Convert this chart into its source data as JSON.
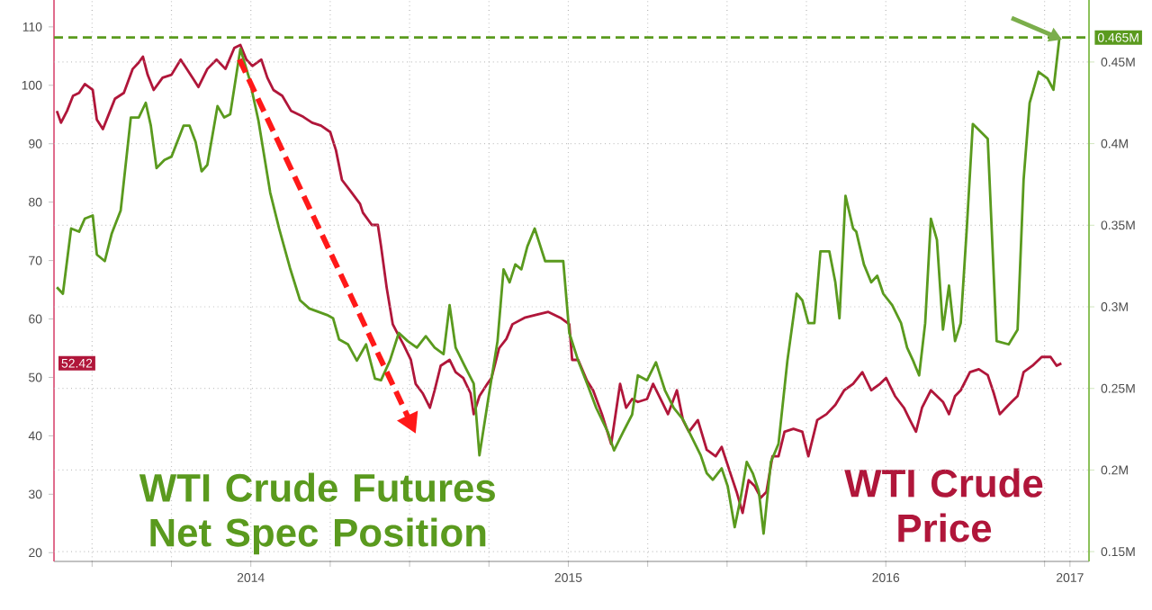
{
  "chart_data": {
    "type": "line",
    "xlim": [
      2013.88,
      2017.14
    ],
    "xticks": [
      {
        "value": 2014,
        "label": null
      },
      {
        "value": 2014.25,
        "label": null
      },
      {
        "value": 2014.5,
        "label": "2014"
      },
      {
        "value": 2014.75,
        "label": null
      },
      {
        "value": 2015,
        "label": null
      },
      {
        "value": 2015.25,
        "label": null
      },
      {
        "value": 2015.5,
        "label": "2015"
      },
      {
        "value": 2015.75,
        "label": null
      },
      {
        "value": 2016,
        "label": null
      },
      {
        "value": 2016.25,
        "label": null
      },
      {
        "value": 2016.5,
        "label": "2016"
      },
      {
        "value": 2016.75,
        "label": null
      },
      {
        "value": 2017,
        "label": null
      },
      {
        "value": 2017.08,
        "label": "2017"
      }
    ],
    "ylim": [
      18.5,
      114.6
    ],
    "yticks": [
      20,
      30,
      40,
      50,
      60,
      70,
      80,
      90,
      100,
      110
    ],
    "y2lim": [
      0.144,
      0.488
    ],
    "y2ticks": [
      {
        "value": 0.15,
        "label": "0.15M"
      },
      {
        "value": 0.2,
        "label": "0.2M"
      },
      {
        "value": 0.25,
        "label": "0.25M"
      },
      {
        "value": 0.3,
        "label": "0.3M"
      },
      {
        "value": 0.35,
        "label": "0.35M"
      },
      {
        "value": 0.4,
        "label": "0.4M"
      },
      {
        "value": 0.45,
        "label": "0.45M"
      }
    ],
    "grid": true,
    "ref_lines": [
      {
        "axis": "y2",
        "value": 0.465,
        "label": "0.465M",
        "color": "#5a9a1e",
        "line_style": "dashed"
      }
    ],
    "annotations": [
      "52.42"
    ],
    "series": [
      {
        "name": "WTI Crude Price",
        "color": "#b0163a",
        "axis": "y",
        "x": [
          2013.889,
          2013.902,
          2013.921,
          2013.94,
          2013.959,
          2013.977,
          2014.002,
          2014.015,
          2014.034,
          2014.053,
          2014.072,
          2014.1,
          2014.128,
          2014.147,
          2014.16,
          2014.175,
          2014.194,
          2014.222,
          2014.25,
          2014.279,
          2014.298,
          2014.316,
          2014.335,
          2014.363,
          2014.392,
          2014.42,
          2014.448,
          2014.467,
          2014.486,
          2014.505,
          2014.533,
          2014.552,
          2014.571,
          2014.599,
          2014.627,
          2014.665,
          2014.693,
          2014.721,
          2014.75,
          2014.768,
          2014.787,
          2014.815,
          2014.844,
          2014.853,
          2014.881,
          2014.9,
          2014.91,
          2014.928,
          2014.947,
          2014.966,
          2014.981,
          2015.004,
          2015.019,
          2015.041,
          2015.064,
          2015.079,
          2015.098,
          2015.126,
          2015.145,
          2015.169,
          2015.192,
          2015.202,
          2015.22,
          2015.245,
          2015.258,
          2015.282,
          2015.305,
          2015.324,
          2015.362,
          2015.399,
          2015.437,
          2015.475,
          2015.503,
          2015.512,
          2015.531,
          2015.559,
          2015.578,
          2015.606,
          2015.635,
          2015.663,
          2015.682,
          2015.701,
          2015.719,
          2015.748,
          2015.767,
          2015.795,
          2015.814,
          2015.842,
          2015.861,
          2015.88,
          2015.908,
          2015.936,
          2015.964,
          2015.983,
          2016.011,
          2016.03,
          2016.049,
          2016.068,
          2016.087,
          2016.106,
          2016.124,
          2016.143,
          2016.162,
          2016.181,
          2016.209,
          2016.237,
          2016.256,
          2016.284,
          2016.313,
          2016.341,
          2016.369,
          2016.397,
          2016.426,
          2016.454,
          2016.482,
          2016.501,
          2016.529,
          2016.557,
          2016.576,
          2016.595,
          2016.614,
          2016.642,
          2016.661,
          2016.68,
          2016.699,
          2016.718,
          2016.736,
          2016.765,
          2016.793,
          2016.821,
          2016.84,
          2016.859,
          2016.878,
          2016.896,
          2016.915,
          2016.934,
          2016.962,
          2016.991,
          2017.019,
          2017.038,
          2017.053
        ],
        "values": [
          95.6,
          93.6,
          95.6,
          98.2,
          98.7,
          100.2,
          99.2,
          94.1,
          92.5,
          95.1,
          97.7,
          98.7,
          102.8,
          103.9,
          104.9,
          101.8,
          99.2,
          101.3,
          101.8,
          104.4,
          102.8,
          101.3,
          99.7,
          102.8,
          104.4,
          102.8,
          106.4,
          106.9,
          104.4,
          103.3,
          104.4,
          101.3,
          99.2,
          98.2,
          95.6,
          94.6,
          93.6,
          93.1,
          92.0,
          88.9,
          83.8,
          81.8,
          79.7,
          78.2,
          76.1,
          76.1,
          72.5,
          65.3,
          59.1,
          57.1,
          55.6,
          53.0,
          48.9,
          47.3,
          44.8,
          47.8,
          52.0,
          53.0,
          50.9,
          49.9,
          47.3,
          43.7,
          46.8,
          48.9,
          49.9,
          55.0,
          56.6,
          59.1,
          60.2,
          60.7,
          61.2,
          60.2,
          59.1,
          53.0,
          53.0,
          49.4,
          47.8,
          43.7,
          38.6,
          48.9,
          44.8,
          46.3,
          45.8,
          46.3,
          48.9,
          45.8,
          43.7,
          47.8,
          42.7,
          40.7,
          42.7,
          37.6,
          36.5,
          38.1,
          33.5,
          30.4,
          26.8,
          32.4,
          31.4,
          29.4,
          30.4,
          36.5,
          36.5,
          40.7,
          41.2,
          40.7,
          36.5,
          42.7,
          43.7,
          45.3,
          47.8,
          48.9,
          50.9,
          47.8,
          48.9,
          49.9,
          46.8,
          44.8,
          42.7,
          40.7,
          44.8,
          47.8,
          46.8,
          45.8,
          43.7,
          46.8,
          47.8,
          50.9,
          51.4,
          50.4,
          47.3,
          43.7,
          44.8,
          45.8,
          46.8,
          50.9,
          52.0,
          53.5,
          53.5,
          52.0,
          52.4
        ]
      },
      {
        "name": "WTI Crude Futures Net Spec Position",
        "color": "#5a9a1e",
        "axis": "y2",
        "x": [
          2013.889,
          2013.908,
          2013.934,
          2013.959,
          2013.977,
          2014.002,
          2014.015,
          2014.04,
          2014.062,
          2014.09,
          2014.122,
          2014.147,
          2014.169,
          2014.185,
          2014.203,
          2014.228,
          2014.25,
          2014.288,
          2014.307,
          2014.326,
          2014.345,
          2014.363,
          2014.395,
          2014.416,
          2014.435,
          2014.467,
          2014.495,
          2014.524,
          2014.561,
          2014.589,
          2014.623,
          2014.655,
          2014.684,
          2014.74,
          2014.759,
          2014.778,
          2014.806,
          2014.834,
          2014.863,
          2014.891,
          2014.91,
          2014.938,
          2014.966,
          2014.994,
          2015.023,
          2015.051,
          2015.079,
          2015.107,
          2015.126,
          2015.145,
          2015.173,
          2015.202,
          2015.22,
          2015.249,
          2015.277,
          2015.296,
          2015.315,
          2015.333,
          2015.352,
          2015.371,
          2015.394,
          2015.427,
          2015.484,
          2015.503,
          2015.531,
          2015.559,
          2015.588,
          2015.625,
          2015.644,
          2015.672,
          2015.701,
          2015.719,
          2015.748,
          2015.776,
          2015.804,
          2015.832,
          2015.861,
          2015.889,
          2015.917,
          2015.936,
          2015.955,
          2015.983,
          2016.002,
          2016.024,
          2016.043,
          2016.062,
          2016.081,
          2016.1,
          2016.115,
          2016.138,
          2016.162,
          2016.19,
          2016.219,
          2016.237,
          2016.256,
          2016.275,
          2016.294,
          2016.322,
          2016.341,
          2016.354,
          2016.373,
          2016.397,
          2016.407,
          2016.431,
          2016.454,
          2016.473,
          2016.492,
          2016.52,
          2016.548,
          2016.567,
          2016.586,
          2016.605,
          2016.624,
          2016.642,
          2016.661,
          2016.68,
          2016.699,
          2016.718,
          2016.736,
          2016.755,
          2016.774,
          2016.821,
          2016.849,
          2016.887,
          2016.915,
          2016.934,
          2016.953,
          2016.981,
          2017.009,
          2017.028,
          2017.047
        ],
        "values": [
          0.312,
          0.308,
          0.348,
          0.346,
          0.354,
          0.356,
          0.332,
          0.328,
          0.345,
          0.359,
          0.416,
          0.416,
          0.425,
          0.411,
          0.385,
          0.39,
          0.392,
          0.411,
          0.411,
          0.401,
          0.383,
          0.387,
          0.423,
          0.416,
          0.418,
          0.458,
          0.44,
          0.414,
          0.37,
          0.348,
          0.324,
          0.304,
          0.299,
          0.295,
          0.293,
          0.28,
          0.277,
          0.267,
          0.277,
          0.256,
          0.255,
          0.267,
          0.284,
          0.279,
          0.275,
          0.282,
          0.275,
          0.271,
          0.301,
          0.275,
          0.264,
          0.253,
          0.209,
          0.245,
          0.279,
          0.323,
          0.315,
          0.326,
          0.323,
          0.337,
          0.348,
          0.328,
          0.328,
          0.284,
          0.267,
          0.253,
          0.238,
          0.223,
          0.212,
          0.223,
          0.234,
          0.258,
          0.255,
          0.266,
          0.249,
          0.238,
          0.231,
          0.22,
          0.209,
          0.198,
          0.194,
          0.201,
          0.19,
          0.165,
          0.183,
          0.205,
          0.198,
          0.187,
          0.161,
          0.205,
          0.216,
          0.267,
          0.308,
          0.304,
          0.29,
          0.29,
          0.334,
          0.334,
          0.315,
          0.293,
          0.368,
          0.348,
          0.346,
          0.326,
          0.315,
          0.319,
          0.308,
          0.301,
          0.29,
          0.275,
          0.267,
          0.258,
          0.29,
          0.354,
          0.341,
          0.286,
          0.313,
          0.279,
          0.29,
          0.348,
          0.412,
          0.403,
          0.279,
          0.277,
          0.286,
          0.378,
          0.425,
          0.444,
          0.44,
          0.433,
          0.465
        ]
      }
    ]
  }
}
